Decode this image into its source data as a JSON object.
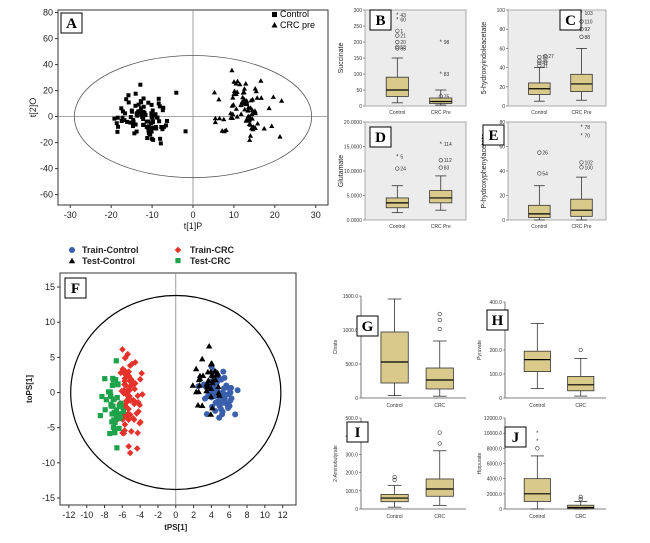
{
  "colors": {
    "box_fill": "#d9ca8c",
    "panel_bg": "#ececec",
    "blue": "#3a5fad",
    "red": "#e5322a",
    "green": "#1ea34b",
    "black": "#000000"
  },
  "chart_data": [
    {
      "panel": "A",
      "type": "scatter",
      "xlabel": "t[1]P",
      "ylabel": "t[2]O",
      "xticks": [
        "-30",
        "-20",
        "-10",
        "0",
        "10",
        "20",
        "30"
      ],
      "yticks": [
        "80",
        "60",
        "40",
        "20",
        "0",
        "-20",
        "-40",
        "-60"
      ],
      "xlim": [
        -33,
        33
      ],
      "ylim": [
        -68,
        82
      ],
      "legend": [
        "Control",
        "CRC pre"
      ],
      "ellipse": {
        "rx": 29,
        "ry": 47
      }
    },
    {
      "panel": "B",
      "type": "box",
      "ylabel": "Succinate",
      "categories": [
        "Control",
        "CRC Pre"
      ],
      "yticks": [
        "0",
        "50",
        "100",
        "150",
        "200",
        "250",
        "300"
      ],
      "ylim": [
        0,
        300
      ],
      "boxes": [
        {
          "whislo": 10,
          "q1": 30,
          "med": 50,
          "q3": 90,
          "whishi": 150
        },
        {
          "whislo": 3,
          "q1": 8,
          "med": 14,
          "q3": 25,
          "whishi": 50
        }
      ],
      "annotations": [
        "43",
        "60",
        "1",
        "21",
        "20",
        "65",
        "53",
        "98",
        "83",
        "75"
      ]
    },
    {
      "panel": "C",
      "type": "box",
      "ylabel": "5-hydroxyindoleacetate",
      "categories": [
        "Control",
        "CRC Pre"
      ],
      "yticks": [
        "0",
        "20",
        "40",
        "60",
        "80",
        "100"
      ],
      "ylim": [
        0,
        100
      ],
      "boxes": [
        {
          "whislo": 5,
          "q1": 12,
          "med": 18,
          "q3": 24,
          "whishi": 40
        },
        {
          "whislo": 6,
          "q1": 15,
          "med": 23,
          "q3": 33,
          "whishi": 60
        }
      ],
      "annotations": [
        "20",
        "27",
        "45",
        "41",
        "31",
        "103",
        "110",
        "92",
        "88"
      ]
    },
    {
      "panel": "D",
      "type": "box",
      "ylabel": "Glutamate",
      "categories": [
        "Control",
        "CRC Pre"
      ],
      "yticks": [
        "0.0000",
        "5.0000",
        "10.0000",
        "15.0000",
        "20.0000"
      ],
      "ylim": [
        0,
        20000
      ],
      "boxes": [
        {
          "whislo": 1500,
          "q1": 2500,
          "med": 3500,
          "q3": 4500,
          "whishi": 7000
        },
        {
          "whislo": 2000,
          "q1": 3500,
          "med": 4500,
          "q3": 6000,
          "whishi": 9000
        }
      ],
      "annotations": [
        "5",
        "24",
        "114",
        "112",
        "83"
      ]
    },
    {
      "panel": "E",
      "type": "box",
      "ylabel": "P-hydroxyphenylacetate",
      "categories": [
        "Control",
        "CRC Pre"
      ],
      "yticks": [
        "0",
        "20",
        "40",
        "60",
        "80"
      ],
      "ylim": [
        0,
        80
      ],
      "boxes": [
        {
          "whislo": 0,
          "q1": 2,
          "med": 5,
          "q3": 12,
          "whishi": 28
        },
        {
          "whislo": 0,
          "q1": 3,
          "med": 8,
          "q3": 17,
          "whishi": 35
        }
      ],
      "annotations": [
        "26",
        "54",
        "78",
        "70",
        "102",
        "100"
      ]
    },
    {
      "panel": "F",
      "type": "scatter",
      "xlabel": "tPS[1]",
      "ylabel": "toPS[1]",
      "xticks": [
        "-12",
        "-10",
        "-8",
        "-6",
        "-4",
        "-2",
        "0",
        "2",
        "4",
        "6",
        "8",
        "10",
        "12"
      ],
      "yticks": [
        "15",
        "10",
        "5",
        "0",
        "-5",
        "-10",
        "-15"
      ],
      "xlim": [
        -13,
        13.5
      ],
      "ylim": [
        -16,
        17
      ],
      "legend": [
        "Train-Control",
        "Train-CRC",
        "Test-Control",
        "Test-CRC"
      ],
      "ellipse": {
        "rx": 11.8,
        "ry": 13.8
      }
    },
    {
      "panel": "G",
      "type": "box",
      "ylabel": "Citrate",
      "categories": [
        "Control",
        "CRC"
      ],
      "yticks": [
        "0",
        "500.0",
        "1000.0",
        "1500.0"
      ],
      "ylim": [
        0,
        1700
      ],
      "boxes": [
        {
          "whislo": 40,
          "q1": 250,
          "med": 600,
          "q3": 1100,
          "whishi": 1650
        },
        {
          "whislo": 30,
          "q1": 150,
          "med": 300,
          "q3": 500,
          "whishi": 950
        }
      ]
    },
    {
      "panel": "H",
      "type": "box",
      "ylabel": "Pyruvate",
      "categories": [
        "Control",
        "CRC"
      ],
      "yticks": [
        "0",
        "100.0",
        "200.0",
        "300.0",
        "400.0"
      ],
      "ylim": [
        0,
        400
      ],
      "boxes": [
        {
          "whislo": 40,
          "q1": 110,
          "med": 160,
          "q3": 195,
          "whishi": 310
        },
        {
          "whislo": 8,
          "q1": 30,
          "med": 55,
          "q3": 90,
          "whishi": 165
        }
      ]
    },
    {
      "panel": "I",
      "type": "box",
      "ylabel": "2-Aminobutyrate",
      "categories": [
        "Control",
        "CRC"
      ],
      "yticks": [
        "0",
        "100.0",
        "200.0",
        "300.0",
        "400.0",
        "500.0"
      ],
      "ylim": [
        0,
        500
      ],
      "boxes": [
        {
          "whislo": 10,
          "q1": 40,
          "med": 60,
          "q3": 80,
          "whishi": 130
        },
        {
          "whislo": 20,
          "q1": 70,
          "med": 110,
          "q3": 165,
          "whishi": 320
        }
      ]
    },
    {
      "panel": "J",
      "type": "box",
      "ylabel": "Hippurate",
      "categories": [
        "Control",
        "CRC"
      ],
      "yticks": [
        "0",
        "2000.0",
        "4000.0",
        "6000.0",
        "8000.0",
        "10000.0",
        "12000.0"
      ],
      "ylim": [
        0,
        12000
      ],
      "boxes": [
        {
          "whislo": 0,
          "q1": 1000,
          "med": 2000,
          "q3": 4000,
          "whishi": 7000
        },
        {
          "whislo": 0,
          "q1": 50,
          "med": 200,
          "q3": 500,
          "whishi": 1000
        }
      ]
    }
  ]
}
